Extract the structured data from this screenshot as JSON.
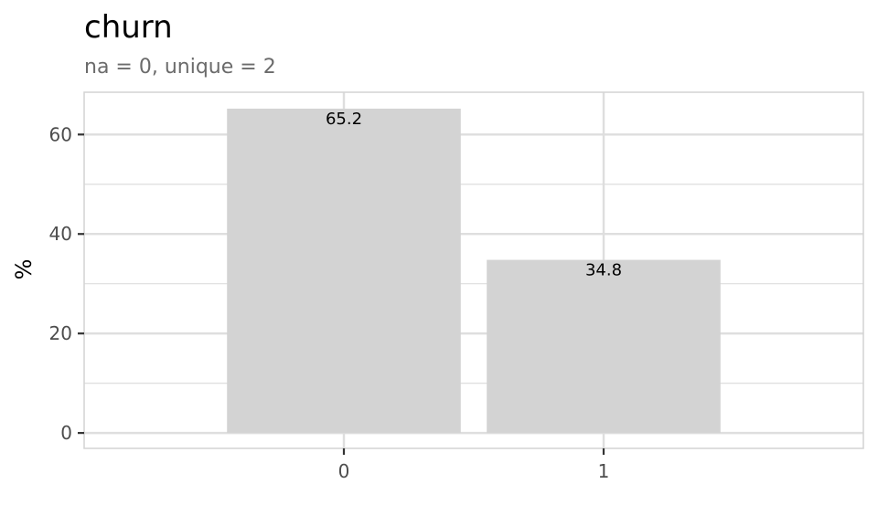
{
  "chart_data": {
    "type": "bar",
    "title": "churn",
    "subtitle": "na = 0, unique = 2",
    "xlabel": "",
    "ylabel": "%",
    "categories": [
      "0",
      "1"
    ],
    "values": [
      65.2,
      34.8
    ],
    "data_labels": [
      "65.2",
      "34.8"
    ],
    "ylim": [
      -3.1,
      68.5
    ],
    "yticks": [
      0,
      20,
      40,
      60
    ],
    "grid": true,
    "legend": "none",
    "bar_color": "#d3d3d3",
    "grid_color": "#dedede",
    "panel_border_color": "#d3d3d3"
  }
}
